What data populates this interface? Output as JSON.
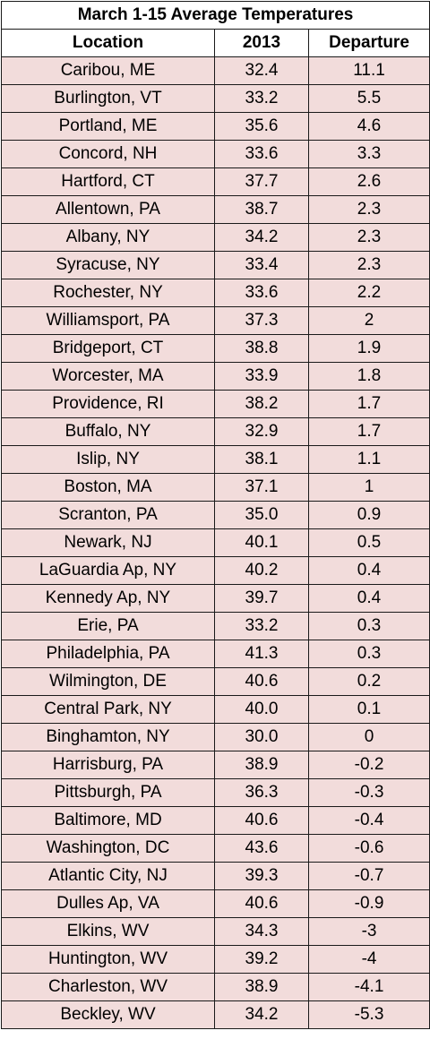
{
  "chart_data": {
    "type": "table",
    "title": "March 1-15 Average Temperatures",
    "columns": [
      "Location",
      "2013",
      "Departure"
    ],
    "rows": [
      [
        "Caribou, ME",
        "32.4",
        "11.1"
      ],
      [
        "Burlington, VT",
        "33.2",
        "5.5"
      ],
      [
        "Portland, ME",
        "35.6",
        "4.6"
      ],
      [
        "Concord, NH",
        "33.6",
        "3.3"
      ],
      [
        "Hartford, CT",
        "37.7",
        "2.6"
      ],
      [
        "Allentown, PA",
        "38.7",
        "2.3"
      ],
      [
        "Albany, NY",
        "34.2",
        "2.3"
      ],
      [
        "Syracuse, NY",
        "33.4",
        "2.3"
      ],
      [
        "Rochester, NY",
        "33.6",
        "2.2"
      ],
      [
        "Williamsport, PA",
        "37.3",
        "2"
      ],
      [
        "Bridgeport, CT",
        "38.8",
        "1.9"
      ],
      [
        "Worcester, MA",
        "33.9",
        "1.8"
      ],
      [
        "Providence, RI",
        "38.2",
        "1.7"
      ],
      [
        "Buffalo, NY",
        "32.9",
        "1.7"
      ],
      [
        "Islip, NY",
        "38.1",
        "1.1"
      ],
      [
        "Boston, MA",
        "37.1",
        "1"
      ],
      [
        "Scranton, PA",
        "35.0",
        "0.9"
      ],
      [
        "Newark, NJ",
        "40.1",
        "0.5"
      ],
      [
        "LaGuardia Ap, NY",
        "40.2",
        "0.4"
      ],
      [
        "Kennedy Ap, NY",
        "39.7",
        "0.4"
      ],
      [
        "Erie, PA",
        "33.2",
        "0.3"
      ],
      [
        "Philadelphia, PA",
        "41.3",
        "0.3"
      ],
      [
        "Wilmington, DE",
        "40.6",
        "0.2"
      ],
      [
        "Central Park, NY",
        "40.0",
        "0.1"
      ],
      [
        "Binghamton, NY",
        "30.0",
        "0"
      ],
      [
        "Harrisburg, PA",
        "38.9",
        "-0.2"
      ],
      [
        "Pittsburgh, PA",
        "36.3",
        "-0.3"
      ],
      [
        "Baltimore, MD",
        "40.6",
        "-0.4"
      ],
      [
        "Washington, DC",
        "43.6",
        "-0.6"
      ],
      [
        "Atlantic City, NJ",
        "39.3",
        "-0.7"
      ],
      [
        "Dulles Ap, VA",
        "40.6",
        "-0.9"
      ],
      [
        "Elkins, WV",
        "34.3",
        "-3"
      ],
      [
        "Huntington, WV",
        "39.2",
        "-4"
      ],
      [
        "Charleston, WV",
        "38.9",
        "-4.1"
      ],
      [
        "Beckley, WV",
        "34.2",
        "-5.3"
      ]
    ]
  },
  "colors": {
    "cell_fill": "#f2dcdb",
    "header_fill": "#ffffff",
    "border": "#1a1a1a",
    "text": "#000000"
  }
}
